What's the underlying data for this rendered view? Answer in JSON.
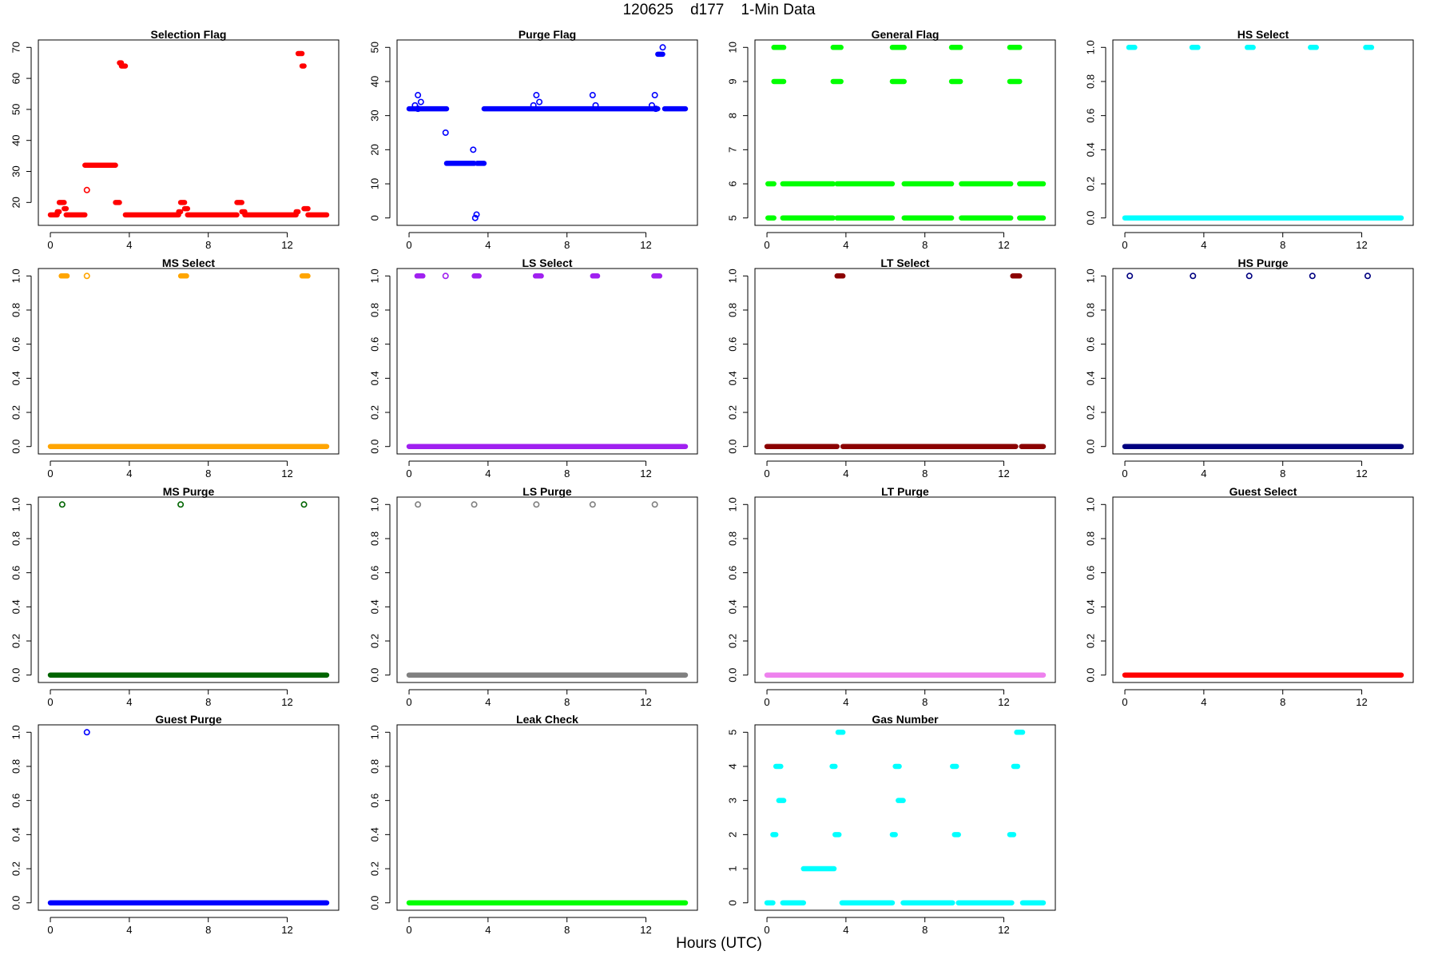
{
  "figure": {
    "title": "120625    d177    1-Min Data",
    "xlabel": "Hours (UTC)"
  },
  "chart_data": [
    {
      "type": "scatter",
      "title": "Selection Flag",
      "color": "#ff0000",
      "xlim": [
        0,
        14
      ],
      "ylim": [
        15,
        70
      ],
      "xticks": [
        0,
        4,
        8,
        12
      ],
      "yticks": [
        20,
        30,
        40,
        50,
        60,
        70
      ],
      "segments": [
        [
          0,
          0.35,
          16
        ],
        [
          0.35,
          0.45,
          17
        ],
        [
          0.45,
          0.7,
          20
        ],
        [
          0.7,
          0.8,
          18
        ],
        [
          0.8,
          1.75,
          16
        ],
        [
          1.75,
          3.3,
          32
        ],
        [
          3.3,
          3.5,
          20
        ],
        [
          3.5,
          3.6,
          65
        ],
        [
          3.6,
          3.8,
          64
        ],
        [
          3.8,
          6.5,
          16
        ],
        [
          6.5,
          6.6,
          17
        ],
        [
          6.6,
          6.8,
          20
        ],
        [
          6.8,
          6.95,
          18
        ],
        [
          6.95,
          9.45,
          16
        ],
        [
          9.45,
          9.7,
          20
        ],
        [
          9.7,
          9.85,
          17
        ],
        [
          9.85,
          12.45,
          16
        ],
        [
          12.45,
          12.55,
          17
        ],
        [
          12.55,
          12.75,
          68
        ],
        [
          12.75,
          12.85,
          64
        ],
        [
          12.85,
          13.05,
          18
        ],
        [
          13.05,
          14,
          16
        ]
      ],
      "points": [
        [
          1.85,
          24
        ]
      ]
    },
    {
      "type": "scatter",
      "title": "Purge Flag",
      "color": "#0000ff",
      "xlim": [
        0,
        14
      ],
      "ylim": [
        0,
        50
      ],
      "xticks": [
        0,
        4,
        8,
        12
      ],
      "yticks": [
        0,
        10,
        20,
        30,
        40,
        50
      ],
      "segments": [
        [
          0,
          1.9,
          32
        ],
        [
          1.9,
          3.3,
          16
        ],
        [
          3.45,
          3.8,
          16
        ],
        [
          3.8,
          12.6,
          32
        ],
        [
          12.6,
          12.85,
          48
        ],
        [
          12.95,
          14,
          32
        ]
      ],
      "points": [
        [
          0.3,
          33
        ],
        [
          0.45,
          36
        ],
        [
          0.6,
          34
        ],
        [
          0.45,
          32
        ],
        [
          1.85,
          25
        ],
        [
          3.25,
          20
        ],
        [
          3.35,
          0
        ],
        [
          3.42,
          1
        ],
        [
          6.3,
          33
        ],
        [
          6.45,
          36
        ],
        [
          6.6,
          34
        ],
        [
          9.3,
          36
        ],
        [
          9.45,
          33
        ],
        [
          12.3,
          33
        ],
        [
          12.45,
          36
        ],
        [
          12.5,
          32
        ],
        [
          12.85,
          50
        ]
      ]
    },
    {
      "type": "scatter",
      "title": "General Flag",
      "color": "#00ff00",
      "xlim": [
        0,
        14
      ],
      "ylim": [
        5,
        10
      ],
      "xticks": [
        0,
        4,
        8,
        12
      ],
      "yticks": [
        5,
        6,
        7,
        8,
        9,
        10
      ],
      "segments": [
        [
          0.05,
          0.35,
          5
        ],
        [
          0.05,
          0.35,
          6
        ],
        [
          0.35,
          0.85,
          9
        ],
        [
          0.35,
          0.85,
          10
        ],
        [
          0.8,
          3.35,
          5
        ],
        [
          0.8,
          3.35,
          6
        ],
        [
          3.35,
          3.75,
          9
        ],
        [
          3.35,
          3.75,
          10
        ],
        [
          3.55,
          6.35,
          5
        ],
        [
          3.55,
          6.35,
          6
        ],
        [
          6.35,
          6.95,
          9
        ],
        [
          6.35,
          6.95,
          10
        ],
        [
          6.95,
          9.35,
          5
        ],
        [
          6.95,
          9.35,
          6
        ],
        [
          9.35,
          9.8,
          9
        ],
        [
          9.35,
          9.8,
          10
        ],
        [
          9.85,
          12.35,
          5
        ],
        [
          9.85,
          12.35,
          6
        ],
        [
          12.3,
          12.8,
          9
        ],
        [
          12.3,
          12.8,
          10
        ],
        [
          12.8,
          14,
          5
        ],
        [
          12.8,
          14,
          6
        ]
      ],
      "points": []
    },
    {
      "type": "scatter",
      "title": "HS Select",
      "color": "#00ffff",
      "xlim": [
        0,
        14
      ],
      "ylim": [
        0,
        1
      ],
      "xticks": [
        0,
        4,
        8,
        12
      ],
      "yticks": [
        0.0,
        0.2,
        0.4,
        0.6,
        0.8,
        1.0
      ],
      "segments": [
        [
          0,
          14,
          0
        ],
        [
          0.2,
          0.5,
          1
        ],
        [
          3.4,
          3.7,
          1
        ],
        [
          6.2,
          6.5,
          1
        ],
        [
          9.4,
          9.7,
          1
        ],
        [
          12.2,
          12.5,
          1
        ]
      ],
      "points": []
    },
    {
      "type": "scatter",
      "title": "MS Select",
      "color": "#ffa500",
      "xlim": [
        0,
        14
      ],
      "ylim": [
        0,
        1
      ],
      "xticks": [
        0,
        4,
        8,
        12
      ],
      "yticks": [
        0.0,
        0.2,
        0.4,
        0.6,
        0.8,
        1.0
      ],
      "segments": [
        [
          0,
          14,
          0
        ],
        [
          0.55,
          0.85,
          1
        ],
        [
          6.6,
          6.9,
          1
        ],
        [
          12.75,
          13.05,
          1
        ]
      ],
      "points": [
        [
          1.85,
          1
        ]
      ]
    },
    {
      "type": "scatter",
      "title": "LS Select",
      "color": "#a020f0",
      "xlim": [
        0,
        14
      ],
      "ylim": [
        0,
        1
      ],
      "xticks": [
        0,
        4,
        8,
        12
      ],
      "yticks": [
        0.0,
        0.2,
        0.4,
        0.6,
        0.8,
        1.0
      ],
      "segments": [
        [
          0,
          14,
          0
        ],
        [
          0.4,
          0.7,
          1
        ],
        [
          3.3,
          3.55,
          1
        ],
        [
          6.4,
          6.7,
          1
        ],
        [
          9.3,
          9.55,
          1
        ],
        [
          12.4,
          12.7,
          1
        ]
      ],
      "points": [
        [
          1.85,
          1
        ]
      ]
    },
    {
      "type": "scatter",
      "title": "LT Select",
      "color": "#8b0000",
      "xlim": [
        0,
        14
      ],
      "ylim": [
        0,
        1
      ],
      "xticks": [
        0,
        4,
        8,
        12
      ],
      "yticks": [
        0.0,
        0.2,
        0.4,
        0.6,
        0.8,
        1.0
      ],
      "segments": [
        [
          0,
          3.55,
          0
        ],
        [
          3.55,
          3.85,
          1
        ],
        [
          3.85,
          12.6,
          0
        ],
        [
          12.45,
          12.8,
          1
        ],
        [
          12.9,
          14,
          0
        ]
      ],
      "points": []
    },
    {
      "type": "scatter",
      "title": "HS Purge",
      "color": "#000080",
      "xlim": [
        0,
        14
      ],
      "ylim": [
        0,
        1
      ],
      "xticks": [
        0,
        4,
        8,
        12
      ],
      "yticks": [
        0.0,
        0.2,
        0.4,
        0.6,
        0.8,
        1.0
      ],
      "segments": [
        [
          0,
          14,
          0
        ]
      ],
      "points": [
        [
          0.25,
          1
        ],
        [
          3.45,
          1
        ],
        [
          6.3,
          1
        ],
        [
          9.5,
          1
        ],
        [
          12.3,
          1
        ]
      ]
    },
    {
      "type": "scatter",
      "title": "MS Purge",
      "color": "#006400",
      "xlim": [
        0,
        14
      ],
      "ylim": [
        0,
        1
      ],
      "xticks": [
        0,
        4,
        8,
        12
      ],
      "yticks": [
        0.0,
        0.2,
        0.4,
        0.6,
        0.8,
        1.0
      ],
      "segments": [
        [
          0,
          14,
          0
        ]
      ],
      "points": [
        [
          0.6,
          1
        ],
        [
          6.6,
          1
        ],
        [
          12.85,
          1
        ]
      ]
    },
    {
      "type": "scatter",
      "title": "LS Purge",
      "color": "#808080",
      "xlim": [
        0,
        14
      ],
      "ylim": [
        0,
        1
      ],
      "xticks": [
        0,
        4,
        8,
        12
      ],
      "yticks": [
        0.0,
        0.2,
        0.4,
        0.6,
        0.8,
        1.0
      ],
      "segments": [
        [
          0,
          14,
          0
        ]
      ],
      "points": [
        [
          0.45,
          1
        ],
        [
          3.3,
          1
        ],
        [
          6.45,
          1
        ],
        [
          9.3,
          1
        ],
        [
          12.45,
          1
        ]
      ]
    },
    {
      "type": "scatter",
      "title": "LT Purge",
      "color": "#ee82ee",
      "xlim": [
        0,
        14
      ],
      "ylim": [
        0,
        1
      ],
      "xticks": [
        0,
        4,
        8,
        12
      ],
      "yticks": [
        0.0,
        0.2,
        0.4,
        0.6,
        0.8,
        1.0
      ],
      "segments": [
        [
          0,
          14,
          0
        ]
      ],
      "points": []
    },
    {
      "type": "scatter",
      "title": "Guest Select",
      "color": "#ff0000",
      "xlim": [
        0,
        14
      ],
      "ylim": [
        0,
        1
      ],
      "xticks": [
        0,
        4,
        8,
        12
      ],
      "yticks": [
        0.0,
        0.2,
        0.4,
        0.6,
        0.8,
        1.0
      ],
      "segments": [
        [
          0,
          14,
          0
        ]
      ],
      "points": []
    },
    {
      "type": "scatter",
      "title": "Guest Purge",
      "color": "#0000ff",
      "xlim": [
        0,
        14
      ],
      "ylim": [
        0,
        1
      ],
      "xticks": [
        0,
        4,
        8,
        12
      ],
      "yticks": [
        0.0,
        0.2,
        0.4,
        0.6,
        0.8,
        1.0
      ],
      "segments": [
        [
          0,
          14,
          0
        ]
      ],
      "points": [
        [
          1.85,
          1
        ]
      ]
    },
    {
      "type": "scatter",
      "title": "Leak Check",
      "color": "#00ff00",
      "xlim": [
        0,
        14
      ],
      "ylim": [
        0,
        1
      ],
      "xticks": [
        0,
        4,
        8,
        12
      ],
      "yticks": [
        0.0,
        0.2,
        0.4,
        0.6,
        0.8,
        1.0
      ],
      "segments": [
        [
          0,
          14,
          0
        ]
      ],
      "points": []
    },
    {
      "type": "scatter",
      "title": "Gas Number",
      "color": "#00ffff",
      "xlim": [
        0,
        14
      ],
      "ylim": [
        0,
        5
      ],
      "xticks": [
        0,
        4,
        8,
        12
      ],
      "yticks": [
        0,
        1,
        2,
        3,
        4,
        5
      ],
      "segments": [
        [
          0,
          0.3,
          0
        ],
        [
          0.3,
          0.45,
          2
        ],
        [
          0.45,
          0.7,
          4
        ],
        [
          0.6,
          0.85,
          3
        ],
        [
          0.8,
          1.85,
          0
        ],
        [
          1.85,
          3.4,
          1
        ],
        [
          3.3,
          3.45,
          4
        ],
        [
          3.45,
          3.65,
          2
        ],
        [
          3.6,
          3.85,
          5
        ],
        [
          3.8,
          6.35,
          0
        ],
        [
          6.35,
          6.5,
          2
        ],
        [
          6.5,
          6.7,
          4
        ],
        [
          6.65,
          6.9,
          3
        ],
        [
          6.9,
          9.4,
          0
        ],
        [
          9.4,
          9.6,
          4
        ],
        [
          9.5,
          9.7,
          2
        ],
        [
          9.7,
          12.4,
          0
        ],
        [
          12.3,
          12.5,
          2
        ],
        [
          12.5,
          12.7,
          4
        ],
        [
          12.65,
          12.95,
          5
        ],
        [
          12.95,
          14,
          0
        ]
      ],
      "points": []
    }
  ]
}
